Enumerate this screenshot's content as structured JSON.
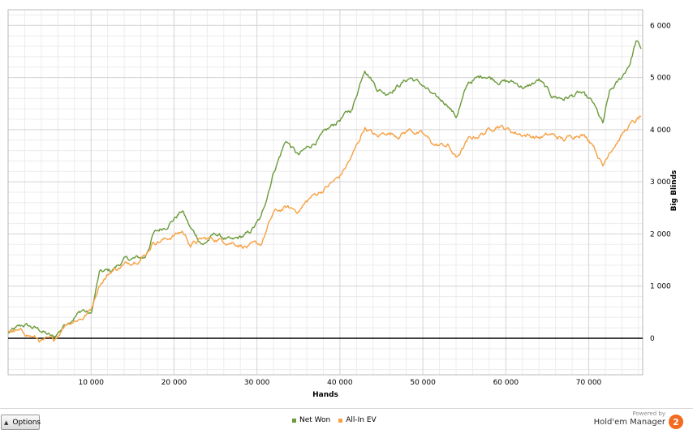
{
  "chart_data": {
    "type": "line",
    "xlabel": "Hands",
    "ylabel": "Big Blinds",
    "xlim": [
      0,
      76500
    ],
    "ylim": [
      -700,
      6300
    ],
    "x_ticks": [
      10000,
      20000,
      30000,
      40000,
      50000,
      60000,
      70000
    ],
    "x_tick_labels": [
      "10 000",
      "20 000",
      "30 000",
      "40 000",
      "50 000",
      "60 000",
      "70 000"
    ],
    "y_ticks": [
      0,
      1000,
      2000,
      3000,
      4000,
      5000,
      6000
    ],
    "y_tick_labels": [
      "0",
      "1 000",
      "2 000",
      "3 000",
      "4 000",
      "5 000",
      "6 000"
    ],
    "grid": true,
    "zero_line": true,
    "legend_position": "bottom-center",
    "series": [
      {
        "name": "Net Won",
        "color": "#6a9a3a",
        "points": [
          [
            0,
            100
          ],
          [
            2000,
            250
          ],
          [
            4000,
            150
          ],
          [
            5500,
            0
          ],
          [
            7000,
            300
          ],
          [
            9000,
            550
          ],
          [
            10000,
            450
          ],
          [
            11000,
            1250
          ],
          [
            12500,
            1300
          ],
          [
            14000,
            1500
          ],
          [
            16500,
            1550
          ],
          [
            17500,
            2000
          ],
          [
            19000,
            2150
          ],
          [
            21000,
            2450
          ],
          [
            22000,
            2100
          ],
          [
            23500,
            1800
          ],
          [
            25000,
            2000
          ],
          [
            27000,
            1850
          ],
          [
            29000,
            2000
          ],
          [
            30500,
            2300
          ],
          [
            32000,
            3200
          ],
          [
            33500,
            3800
          ],
          [
            35000,
            3500
          ],
          [
            36500,
            3700
          ],
          [
            38000,
            3900
          ],
          [
            40000,
            4200
          ],
          [
            41500,
            4400
          ],
          [
            43000,
            5200
          ],
          [
            44500,
            4800
          ],
          [
            45500,
            4700
          ],
          [
            47000,
            4850
          ],
          [
            48500,
            5000
          ],
          [
            50000,
            4850
          ],
          [
            51500,
            4600
          ],
          [
            53000,
            4500
          ],
          [
            54000,
            4250
          ],
          [
            55500,
            4900
          ],
          [
            57500,
            5050
          ],
          [
            59000,
            4950
          ],
          [
            61000,
            4900
          ],
          [
            62500,
            4800
          ],
          [
            64000,
            4950
          ],
          [
            65500,
            4650
          ],
          [
            67000,
            4600
          ],
          [
            69000,
            4700
          ],
          [
            70500,
            4500
          ],
          [
            71700,
            4100
          ],
          [
            72500,
            4700
          ],
          [
            74000,
            5000
          ],
          [
            75000,
            5300
          ],
          [
            75700,
            5700
          ],
          [
            76300,
            5550
          ]
        ]
      },
      {
        "name": "All-In EV",
        "color": "#f7a043",
        "points": [
          [
            0,
            150
          ],
          [
            2000,
            100
          ],
          [
            4000,
            -50
          ],
          [
            5500,
            -50
          ],
          [
            7000,
            300
          ],
          [
            9000,
            400
          ],
          [
            10000,
            550
          ],
          [
            11000,
            1050
          ],
          [
            12500,
            1300
          ],
          [
            14000,
            1400
          ],
          [
            16500,
            1600
          ],
          [
            17500,
            1850
          ],
          [
            19000,
            1900
          ],
          [
            21000,
            2050
          ],
          [
            22000,
            1800
          ],
          [
            23500,
            1900
          ],
          [
            25000,
            1900
          ],
          [
            27000,
            1850
          ],
          [
            29000,
            1750
          ],
          [
            30500,
            1800
          ],
          [
            32000,
            2400
          ],
          [
            33500,
            2500
          ],
          [
            35000,
            2450
          ],
          [
            36500,
            2700
          ],
          [
            38000,
            2850
          ],
          [
            40000,
            3100
          ],
          [
            41500,
            3500
          ],
          [
            43000,
            4050
          ],
          [
            44500,
            3850
          ],
          [
            45500,
            3950
          ],
          [
            47000,
            3900
          ],
          [
            48500,
            4000
          ],
          [
            50000,
            3900
          ],
          [
            51500,
            3700
          ],
          [
            53000,
            3700
          ],
          [
            54000,
            3450
          ],
          [
            55500,
            3800
          ],
          [
            57500,
            3950
          ],
          [
            59000,
            4100
          ],
          [
            61000,
            3950
          ],
          [
            62500,
            3900
          ],
          [
            64000,
            3850
          ],
          [
            65500,
            3900
          ],
          [
            67000,
            3800
          ],
          [
            69000,
            3950
          ],
          [
            70500,
            3750
          ],
          [
            71700,
            3300
          ],
          [
            72500,
            3600
          ],
          [
            74000,
            3900
          ],
          [
            75000,
            4100
          ],
          [
            75700,
            4150
          ],
          [
            76300,
            4250
          ]
        ]
      }
    ]
  },
  "controls": {
    "options_label": "Options"
  },
  "branding": {
    "powered_by": "Powered by",
    "name": "Hold'em Manager",
    "logo_char": "2"
  }
}
